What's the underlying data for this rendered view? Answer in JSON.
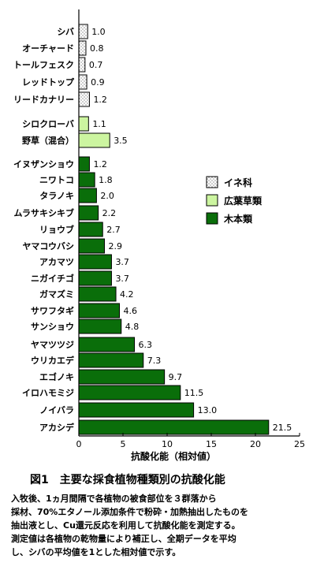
{
  "chart_data": {
    "type": "bar",
    "orientation": "horizontal",
    "xlabel": "抗酸化能（相対値）",
    "xlim": [
      0,
      25
    ],
    "xticks": [
      0,
      5,
      10,
      15,
      20,
      25
    ],
    "legend": {
      "placement": "right-middle",
      "entries": [
        {
          "name": "イネ科",
          "group": "grass"
        },
        {
          "name": "広葉草類",
          "group": "broadleaf"
        },
        {
          "name": "木本類",
          "group": "woody"
        }
      ]
    },
    "colors": {
      "grass": "#ffffff",
      "broadleaf": "#ccf5a0",
      "woody": "#0a6e0a"
    },
    "bars": [
      {
        "label": "シバ",
        "value": 1.0,
        "value_label": "1.0",
        "group": "grass"
      },
      {
        "label": "オーチャード",
        "value": 0.8,
        "value_label": "0.8",
        "group": "grass"
      },
      {
        "label": "トールフェスク",
        "value": 0.7,
        "value_label": "0.7",
        "group": "grass"
      },
      {
        "label": "レッドトップ",
        "value": 0.9,
        "value_label": "0.9",
        "group": "grass"
      },
      {
        "label": "リードカナリー",
        "value": 1.2,
        "value_label": "1.2",
        "group": "grass"
      },
      {
        "label": "シロクローバ",
        "value": 1.1,
        "value_label": "1.1",
        "group": "broadleaf"
      },
      {
        "label": "野草（混合）",
        "value": 3.5,
        "value_label": "3.5",
        "group": "broadleaf"
      },
      {
        "label": "イヌザンショウ",
        "value": 1.2,
        "value_label": "1.2",
        "group": "woody"
      },
      {
        "label": "ニワトコ",
        "value": 1.8,
        "value_label": "1.8",
        "group": "woody"
      },
      {
        "label": "タラノキ",
        "value": 2.0,
        "value_label": "2.0",
        "group": "woody"
      },
      {
        "label": "ムラサキシキブ",
        "value": 2.2,
        "value_label": "2.2",
        "group": "woody"
      },
      {
        "label": "リョウブ",
        "value": 2.7,
        "value_label": "2.7",
        "group": "woody"
      },
      {
        "label": "ヤマコウバシ",
        "value": 2.9,
        "value_label": "2.9",
        "group": "woody"
      },
      {
        "label": "アカマツ",
        "value": 3.7,
        "value_label": "3.7",
        "group": "woody"
      },
      {
        "label": "ニガイチゴ",
        "value": 3.7,
        "value_label": "3.7",
        "group": "woody"
      },
      {
        "label": "ガマズミ",
        "value": 4.2,
        "value_label": "4.2",
        "group": "woody"
      },
      {
        "label": "サワフタギ",
        "value": 4.6,
        "value_label": "4.6",
        "group": "woody"
      },
      {
        "label": "サンショウ",
        "value": 4.8,
        "value_label": "4.8",
        "group": "woody"
      },
      {
        "label": "ヤマツツジ",
        "value": 6.3,
        "value_label": "6.3",
        "group": "woody"
      },
      {
        "label": "ウリカエデ",
        "value": 7.3,
        "value_label": "7.3",
        "group": "woody"
      },
      {
        "label": "エゴノキ",
        "value": 9.7,
        "value_label": "9.7",
        "group": "woody"
      },
      {
        "label": "イロハモミジ",
        "value": 11.5,
        "value_label": "11.5",
        "group": "woody"
      },
      {
        "label": "ノイバラ",
        "value": 13.0,
        "value_label": "13.0",
        "group": "woody"
      },
      {
        "label": "アカシデ",
        "value": 21.5,
        "value_label": "21.5",
        "group": "woody"
      }
    ]
  },
  "caption": {
    "title": "図1　主要な採食植物種類別の抗酸化能",
    "lines": [
      "入牧後、1ヵ月間隔で各植物の被食部位を３群落から",
      "採材、70%エタノール添加条件で粉砕・加熱抽出したものを",
      "抽出液とし、Cu還元反応を利用して抗酸化能を測定する。",
      "測定値は各植物の乾物量により補正し、全期データを平均",
      "し、シバの平均値を1とした相対値で示す。"
    ]
  }
}
